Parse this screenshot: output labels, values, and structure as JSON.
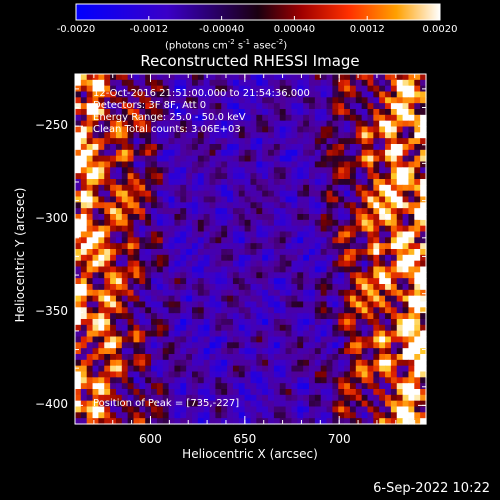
{
  "colorbar": {
    "tick_labels": [
      "-0.0020",
      "-0.0012",
      "-0.00040",
      "0.00040",
      "0.0012",
      "0.0020"
    ],
    "tick_values": [
      -0.002,
      -0.0012,
      -0.0004,
      0.0004,
      0.0012,
      0.002
    ],
    "units_prefix": "(photons cm",
    "units_exp1": "-2",
    "units_mid1": " s",
    "units_exp2": "-1",
    "units_mid2": " asec",
    "units_exp3": "-2",
    "units_suffix": ")",
    "range": [
      -0.002,
      0.002
    ]
  },
  "title": "Reconstructed RHESSI Image",
  "info": {
    "line1": "12-Oct-2016 21:51:00.000 to 21:54:36.000",
    "line2": "Detectors: 3F 8F, Att 0",
    "line3": "Energy Range: 25.0 - 50.0 keV",
    "line4": "Clean     Total counts: 3.06E+03",
    "peak": "Position of Peak = [735,-227]"
  },
  "axes": {
    "xlabel": "Heliocentric X (arcsec)",
    "ylabel": "Heliocentric Y (arcsec)",
    "xticks": [
      {
        "label": "600",
        "value": 600
      },
      {
        "label": "650",
        "value": 650
      },
      {
        "label": "700",
        "value": 700
      }
    ],
    "yticks": [
      {
        "label": "−250",
        "value": -250
      },
      {
        "label": "−300",
        "value": -300
      },
      {
        "label": "−350",
        "value": -350
      },
      {
        "label": "−400",
        "value": -400
      }
    ],
    "xlim": [
      560,
      746
    ],
    "ylim": [
      -410,
      -222
    ]
  },
  "footer_date": "6-Sep-2022 10:22",
  "colors": {
    "background": "#000000",
    "text": "#ffffff"
  }
}
